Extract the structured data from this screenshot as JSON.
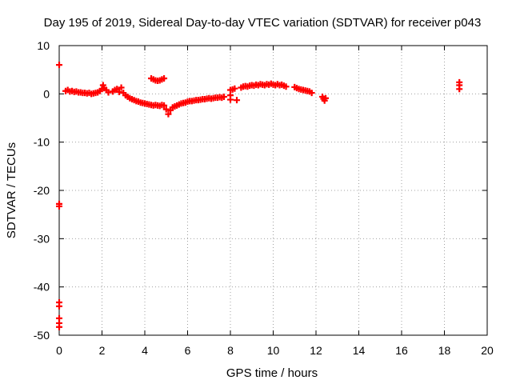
{
  "chart_data": {
    "type": "scatter",
    "title": "Day 195 of 2019, Sidereal Day-to-day VTEC variation (SDTVAR) for receiver p043",
    "xlabel": "GPS time / hours",
    "ylabel": "SDTVAR / TECUs",
    "xlim": [
      0,
      20
    ],
    "ylim": [
      -50,
      10
    ],
    "xticks": [
      0,
      2,
      4,
      6,
      8,
      10,
      12,
      14,
      16,
      18,
      20
    ],
    "yticks": [
      -50,
      -40,
      -30,
      -20,
      -10,
      0,
      10
    ],
    "grid": true,
    "marker": "plus",
    "color": "#ff0000",
    "series": [
      {
        "name": "SDTVAR",
        "points": [
          [
            0.0,
            6.0
          ],
          [
            0.0,
            -22.8
          ],
          [
            0.0,
            -23.3
          ],
          [
            0.0,
            -43.2
          ],
          [
            0.0,
            -44.0
          ],
          [
            0.0,
            -46.5
          ],
          [
            0.0,
            -47.5
          ],
          [
            0.0,
            -48.3
          ],
          [
            0.3,
            0.6
          ],
          [
            0.4,
            0.8
          ],
          [
            0.5,
            0.5
          ],
          [
            0.6,
            0.6
          ],
          [
            0.7,
            0.4
          ],
          [
            0.8,
            0.5
          ],
          [
            0.9,
            0.3
          ],
          [
            1.0,
            0.3
          ],
          [
            1.1,
            0.2
          ],
          [
            1.2,
            0.2
          ],
          [
            1.3,
            0.1
          ],
          [
            1.4,
            0.2
          ],
          [
            1.5,
            0.0
          ],
          [
            1.6,
            0.1
          ],
          [
            1.7,
            0.2
          ],
          [
            1.8,
            0.3
          ],
          [
            1.9,
            0.6
          ],
          [
            2.0,
            1.0
          ],
          [
            2.05,
            1.8
          ],
          [
            2.1,
            1.2
          ],
          [
            2.2,
            0.8
          ],
          [
            2.3,
            0.3
          ],
          [
            2.5,
            0.5
          ],
          [
            2.6,
            0.8
          ],
          [
            2.7,
            1.0
          ],
          [
            2.8,
            0.4
          ],
          [
            2.9,
            1.3
          ],
          [
            3.0,
            0.2
          ],
          [
            3.1,
            -0.3
          ],
          [
            3.2,
            -0.6
          ],
          [
            3.3,
            -0.9
          ],
          [
            3.4,
            -1.1
          ],
          [
            3.5,
            -1.3
          ],
          [
            3.6,
            -1.5
          ],
          [
            3.7,
            -1.6
          ],
          [
            3.8,
            -1.8
          ],
          [
            3.9,
            -1.9
          ],
          [
            4.0,
            -2.0
          ],
          [
            4.1,
            -2.1
          ],
          [
            4.2,
            -2.2
          ],
          [
            4.3,
            -2.3
          ],
          [
            4.4,
            -2.4
          ],
          [
            4.5,
            -2.3
          ],
          [
            4.6,
            -2.4
          ],
          [
            4.7,
            -2.5
          ],
          [
            4.8,
            -2.3
          ],
          [
            4.9,
            -2.4
          ],
          [
            4.3,
            3.2
          ],
          [
            4.4,
            3.0
          ],
          [
            4.5,
            2.8
          ],
          [
            4.6,
            2.7
          ],
          [
            4.7,
            2.8
          ],
          [
            4.8,
            3.0
          ],
          [
            4.9,
            3.2
          ],
          [
            5.0,
            -3.2
          ],
          [
            5.1,
            -4.2
          ],
          [
            5.2,
            -3.4
          ],
          [
            5.3,
            -2.8
          ],
          [
            5.4,
            -2.6
          ],
          [
            5.5,
            -2.4
          ],
          [
            5.6,
            -2.2
          ],
          [
            5.7,
            -2.0
          ],
          [
            5.8,
            -1.9
          ],
          [
            5.9,
            -1.8
          ],
          [
            6.0,
            -1.6
          ],
          [
            6.1,
            -1.5
          ],
          [
            6.2,
            -1.5
          ],
          [
            6.3,
            -1.4
          ],
          [
            6.4,
            -1.3
          ],
          [
            6.5,
            -1.3
          ],
          [
            6.6,
            -1.2
          ],
          [
            6.7,
            -1.1
          ],
          [
            6.8,
            -1.1
          ],
          [
            6.9,
            -1.0
          ],
          [
            7.0,
            -0.9
          ],
          [
            7.1,
            -1.0
          ],
          [
            7.2,
            -0.9
          ],
          [
            7.3,
            -0.8
          ],
          [
            7.4,
            -0.8
          ],
          [
            7.5,
            -0.7
          ],
          [
            7.6,
            -0.8
          ],
          [
            7.7,
            -0.6
          ],
          [
            8.0,
            -0.3
          ],
          [
            8.0,
            -1.2
          ],
          [
            8.0,
            0.8
          ],
          [
            8.1,
            0.9
          ],
          [
            8.2,
            1.1
          ],
          [
            8.3,
            -1.3
          ],
          [
            8.5,
            1.3
          ],
          [
            8.6,
            1.5
          ],
          [
            8.7,
            1.6
          ],
          [
            8.8,
            1.5
          ],
          [
            8.9,
            1.7
          ],
          [
            9.0,
            1.8
          ],
          [
            9.1,
            1.7
          ],
          [
            9.2,
            1.9
          ],
          [
            9.3,
            1.8
          ],
          [
            9.4,
            2.0
          ],
          [
            9.5,
            1.9
          ],
          [
            9.6,
            1.8
          ],
          [
            9.7,
            2.0
          ],
          [
            9.8,
            1.9
          ],
          [
            9.9,
            2.1
          ],
          [
            10.0,
            1.9
          ],
          [
            10.1,
            1.8
          ],
          [
            10.2,
            2.0
          ],
          [
            10.3,
            1.8
          ],
          [
            10.4,
            1.9
          ],
          [
            10.5,
            1.7
          ],
          [
            10.6,
            1.5
          ],
          [
            11.0,
            1.4
          ],
          [
            11.1,
            1.2
          ],
          [
            11.2,
            1.0
          ],
          [
            11.3,
            0.9
          ],
          [
            11.4,
            0.8
          ],
          [
            11.5,
            0.7
          ],
          [
            11.6,
            0.6
          ],
          [
            11.7,
            0.5
          ],
          [
            11.8,
            0.2
          ],
          [
            12.3,
            -0.6
          ],
          [
            12.35,
            -1.0
          ],
          [
            12.4,
            -1.4
          ],
          [
            12.45,
            -0.9
          ],
          [
            18.7,
            2.4
          ],
          [
            18.7,
            1.8
          ],
          [
            18.7,
            1.0
          ]
        ]
      }
    ]
  }
}
